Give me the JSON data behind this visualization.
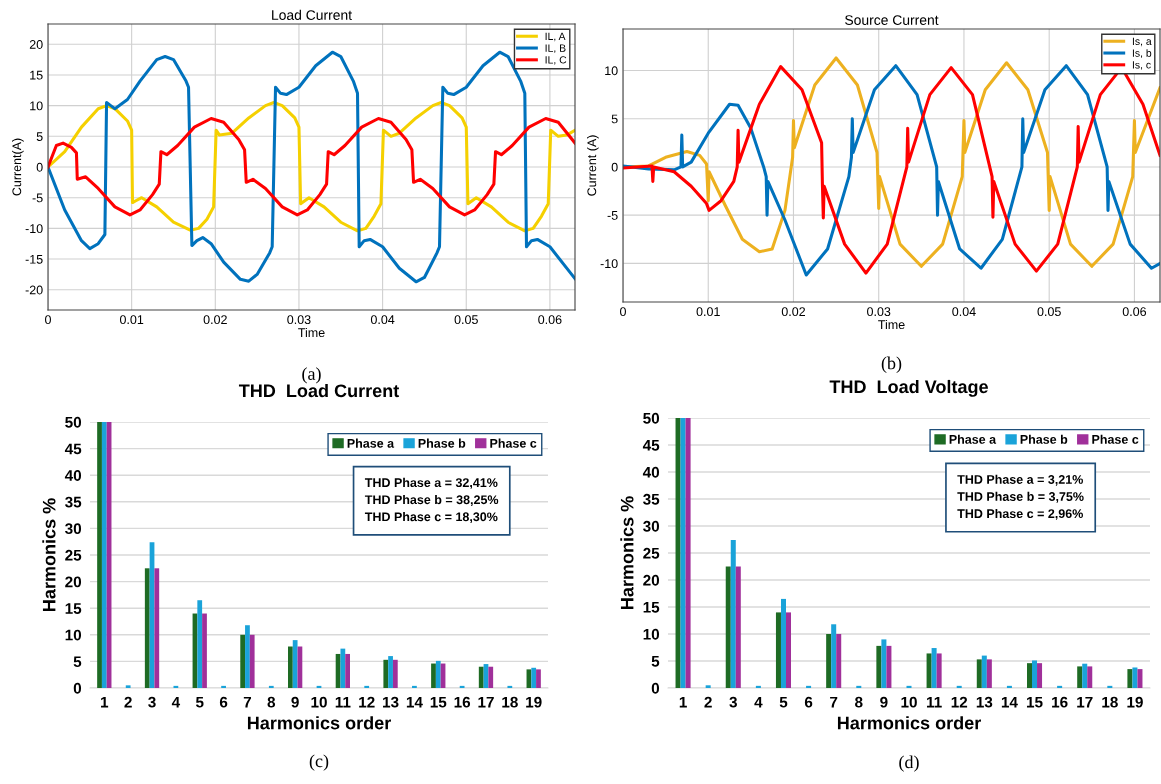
{
  "chart_data": [
    {
      "type": "line",
      "title": "Load Current",
      "xlabel": "Time",
      "ylabel": "Current(A)",
      "xlim": [
        0,
        0.063
      ],
      "ylim": [
        -23.3,
        23.3
      ],
      "xticks": [
        0,
        0.01,
        0.02,
        0.03,
        0.04,
        0.05,
        0.06
      ],
      "yticks": [
        -20,
        -15,
        -10,
        -5,
        0,
        5,
        10,
        15,
        20
      ],
      "grid": true,
      "legend": "top right",
      "marker": "none",
      "line_style": "solid",
      "annotations": [
        "(a)"
      ],
      "series": [
        {
          "name": "IL, A",
          "color": "#f5d000",
          "x": [
            0,
            0.002,
            0.004,
            0.006,
            0.007,
            0.008,
            0.0095,
            0.01,
            0.0101,
            0.0105,
            0.0112,
            0.013,
            0.015,
            0.017,
            0.018,
            0.019,
            0.0198,
            0.0201,
            0.0205,
            0.022,
            0.024,
            0.026,
            0.027,
            0.028,
            0.0295,
            0.03,
            0.0302,
            0.0312,
            0.033,
            0.035,
            0.037,
            0.038,
            0.039,
            0.0398,
            0.0401,
            0.041,
            0.042,
            0.044,
            0.046,
            0.047,
            0.048,
            0.0495,
            0.05,
            0.0502,
            0.0512,
            0.053,
            0.055,
            0.057,
            0.058,
            0.059,
            0.0598,
            0.0601,
            0.061,
            0.062,
            0.063
          ],
          "values": [
            0,
            2.5,
            6.5,
            9.5,
            10,
            9.5,
            7.5,
            6,
            -5.8,
            -5.5,
            -5,
            -6.5,
            -9,
            -10.3,
            -10,
            -8.5,
            -6.5,
            6,
            5.2,
            5.5,
            8,
            10,
            10.5,
            10,
            8,
            6.5,
            -6,
            -5,
            -6.5,
            -9,
            -10.4,
            -10,
            -8,
            -6,
            6,
            5,
            5.5,
            8,
            10,
            10.5,
            10,
            8,
            6.5,
            -6,
            -5,
            -6.5,
            -9,
            -10.4,
            -10,
            -8,
            -6,
            6,
            5,
            5.2,
            6
          ]
        },
        {
          "name": "IL, B",
          "color": "#0072bd",
          "x": [
            0,
            0.002,
            0.004,
            0.005,
            0.006,
            0.0068,
            0.007,
            0.0075,
            0.008,
            0.0095,
            0.011,
            0.013,
            0.014,
            0.015,
            0.0165,
            0.0168,
            0.0172,
            0.0178,
            0.0185,
            0.0195,
            0.021,
            0.023,
            0.024,
            0.025,
            0.0265,
            0.0268,
            0.0272,
            0.0278,
            0.0285,
            0.03,
            0.032,
            0.034,
            0.035,
            0.0365,
            0.037,
            0.0372,
            0.0378,
            0.0385,
            0.04,
            0.042,
            0.044,
            0.045,
            0.0465,
            0.0468,
            0.0472,
            0.0478,
            0.0485,
            0.05,
            0.052,
            0.054,
            0.055,
            0.0565,
            0.057,
            0.0572,
            0.0578,
            0.0585,
            0.06,
            0.063
          ],
          "values": [
            0,
            -7,
            -12,
            -13.3,
            -12.5,
            -11,
            10.5,
            10,
            9.5,
            11,
            14,
            17.5,
            18,
            17.5,
            14,
            13,
            -12.8,
            -12,
            -11.5,
            -12.5,
            -15.5,
            -18.3,
            -18.6,
            -17.5,
            -14,
            -13,
            13,
            12,
            11.8,
            13,
            16.5,
            18.7,
            18,
            14,
            12,
            -13,
            -12,
            -11.8,
            -13,
            -16.5,
            -18.7,
            -18,
            -14,
            -13,
            13,
            12,
            11.8,
            13,
            16.5,
            18.7,
            18,
            14,
            12,
            -13,
            -12,
            -11.8,
            -13,
            -18.2
          ]
        },
        {
          "name": "IL, C",
          "color": "#ff0000",
          "x": [
            0,
            0.001,
            0.0018,
            0.0028,
            0.0034,
            0.0035,
            0.0045,
            0.006,
            0.008,
            0.0098,
            0.011,
            0.0125,
            0.0133,
            0.0135,
            0.0142,
            0.0155,
            0.0175,
            0.0195,
            0.021,
            0.0228,
            0.0235,
            0.0237,
            0.0245,
            0.026,
            0.028,
            0.0298,
            0.031,
            0.0325,
            0.0333,
            0.0335,
            0.0342,
            0.0355,
            0.0375,
            0.0395,
            0.041,
            0.0428,
            0.0435,
            0.0437,
            0.0445,
            0.046,
            0.048,
            0.0498,
            0.051,
            0.0525,
            0.0533,
            0.0535,
            0.0542,
            0.0555,
            0.0575,
            0.0595,
            0.061,
            0.063
          ],
          "values": [
            0,
            3.5,
            3.9,
            3.2,
            2.3,
            -2,
            -1.6,
            -3.5,
            -6.5,
            -7.8,
            -7,
            -4.5,
            -2.8,
            2.5,
            2,
            3.5,
            6.5,
            7.9,
            7.3,
            4.5,
            2.8,
            -2.5,
            -2,
            -3.5,
            -6.5,
            -7.8,
            -7,
            -4.5,
            -2.8,
            2.5,
            2,
            3.5,
            6.5,
            7.9,
            7.3,
            4.5,
            2.8,
            -2.5,
            -2,
            -3.5,
            -6.5,
            -7.8,
            -7,
            -4.5,
            -2.8,
            2.5,
            2,
            3.5,
            6.5,
            7.9,
            7.3,
            3.9
          ]
        }
      ]
    },
    {
      "type": "line",
      "title": "Source Current",
      "xlabel": "Time",
      "ylabel": "Current (A)",
      "xlim": [
        0,
        0.063
      ],
      "ylim": [
        -14,
        14.3
      ],
      "xticks": [
        0,
        0.01,
        0.02,
        0.03,
        0.04,
        0.05,
        0.06
      ],
      "yticks": [
        -10,
        -5,
        0,
        5,
        10
      ],
      "grid": true,
      "legend": "top right",
      "marker": "none",
      "line_style": "solid",
      "annotations": [
        "(b)"
      ],
      "series": [
        {
          "name": "Is, a",
          "color": "#edb120",
          "x": [
            0,
            0.003,
            0.005,
            0.0075,
            0.009,
            0.0098,
            0.01,
            0.0101,
            0.012,
            0.014,
            0.016,
            0.0175,
            0.019,
            0.0199,
            0.02,
            0.0201,
            0.0225,
            0.025,
            0.0275,
            0.0298,
            0.03,
            0.0301,
            0.0325,
            0.035,
            0.0375,
            0.0398,
            0.04,
            0.0401,
            0.0425,
            0.045,
            0.0475,
            0.0498,
            0.05,
            0.0501,
            0.0525,
            0.055,
            0.0575,
            0.0598,
            0.06,
            0.0601,
            0.063
          ],
          "values": [
            0,
            0.1,
            1,
            1.6,
            1.2,
            0.3,
            -3.5,
            -0.5,
            -4,
            -7.5,
            -8.8,
            -8.5,
            -4.5,
            1,
            4.8,
            2,
            8.5,
            11.3,
            8.5,
            1.5,
            -4.3,
            -1,
            -8,
            -10.3,
            -8,
            -1,
            4.8,
            1.5,
            8,
            10.8,
            8,
            1.5,
            -4.5,
            -1,
            -8,
            -10.3,
            -8,
            -1,
            4.8,
            1.5,
            8.2
          ]
        },
        {
          "name": "Is, b",
          "color": "#0072bd",
          "x": [
            0,
            0.003,
            0.006,
            0.0068,
            0.0069,
            0.007,
            0.008,
            0.01,
            0.0125,
            0.0135,
            0.015,
            0.0165,
            0.0168,
            0.0169,
            0.017,
            0.019,
            0.0215,
            0.024,
            0.0265,
            0.0268,
            0.0269,
            0.027,
            0.0295,
            0.032,
            0.0345,
            0.0368,
            0.0369,
            0.037,
            0.0395,
            0.042,
            0.0445,
            0.0468,
            0.0469,
            0.047,
            0.0495,
            0.052,
            0.0545,
            0.0568,
            0.0569,
            0.057,
            0.0595,
            0.062,
            0.063
          ],
          "values": [
            0.1,
            -0.2,
            -0.3,
            0,
            3.3,
            0,
            0.5,
            3.5,
            6.5,
            6.4,
            4,
            0,
            -1,
            -5,
            -1.5,
            -5.5,
            -11.2,
            -8.5,
            -1,
            1,
            5,
            1.5,
            8,
            10.5,
            7.5,
            0,
            -5,
            -1.5,
            -8.5,
            -10.5,
            -7.5,
            0,
            5,
            1.5,
            8,
            10.5,
            7.5,
            0,
            -4.5,
            -1.5,
            -8,
            -10.5,
            -10
          ]
        },
        {
          "name": "Is, c",
          "color": "#ff0000",
          "x": [
            0,
            0.0034,
            0.0035,
            0.0036,
            0.006,
            0.008,
            0.0098,
            0.0101,
            0.0115,
            0.013,
            0.0134,
            0.0135,
            0.0136,
            0.016,
            0.0185,
            0.021,
            0.0233,
            0.0234,
            0.0235,
            0.0236,
            0.026,
            0.0285,
            0.031,
            0.0333,
            0.0334,
            0.0335,
            0.036,
            0.0385,
            0.041,
            0.0433,
            0.0434,
            0.0435,
            0.046,
            0.0485,
            0.051,
            0.0533,
            0.0534,
            0.0535,
            0.056,
            0.0585,
            0.061,
            0.063
          ],
          "values": [
            -0.1,
            0.1,
            -1.5,
            0,
            -0.5,
            -2,
            -3.8,
            -4.5,
            -3.5,
            -1.5,
            0,
            3.8,
            0.5,
            6.5,
            10.4,
            8,
            2.5,
            -2,
            -5.3,
            -2,
            -8,
            -11,
            -8,
            0,
            4,
            0.5,
            7.5,
            10.3,
            7.5,
            -1,
            -5.2,
            -1.5,
            -8,
            -10.8,
            -8,
            0,
            4.2,
            0.5,
            7.5,
            10.3,
            6.5,
            1.2
          ]
        }
      ]
    },
    {
      "type": "bar",
      "title": "THD  Load Current",
      "xlabel": "Harmonics order",
      "ylabel": "Harmonics %",
      "categories": [
        "1",
        "2",
        "3",
        "4",
        "5",
        "6",
        "7",
        "8",
        "9",
        "10",
        "11",
        "12",
        "13",
        "14",
        "15",
        "16",
        "17",
        "18",
        "19"
      ],
      "ylim": [
        0,
        50
      ],
      "yticks": [
        0,
        5,
        10,
        15,
        20,
        25,
        30,
        35,
        40,
        45,
        50
      ],
      "grid": "y",
      "legend": "top right",
      "annotations": [
        "THD Phase a = 32,41%",
        "THD Phase b = 38,25%",
        "THD Phase c = 18,30%",
        "(c)"
      ],
      "series": [
        {
          "name": "Phase a",
          "color": "#1e6b24",
          "values": [
            50,
            0,
            22.5,
            0,
            14,
            0,
            10,
            0,
            7.8,
            0,
            6.4,
            0,
            5.3,
            0,
            4.6,
            0,
            4,
            0,
            3.5
          ]
        },
        {
          "name": "Phase b",
          "color": "#1aa3d9",
          "values": [
            50,
            0.5,
            27.4,
            0.4,
            16.5,
            0.4,
            11.8,
            0.4,
            9,
            0.4,
            7.4,
            0.4,
            6,
            0.4,
            5.1,
            0.4,
            4.5,
            0.4,
            3.8
          ]
        },
        {
          "name": "Phase c",
          "color": "#a0309a",
          "values": [
            50,
            0,
            22.5,
            0,
            14,
            0,
            10,
            0,
            7.8,
            0,
            6.4,
            0,
            5.3,
            0,
            4.6,
            0,
            4,
            0,
            3.5
          ]
        }
      ]
    },
    {
      "type": "bar",
      "title": "THD  Load Voltage",
      "xlabel": "Harmonics order",
      "ylabel": "Harmonics %",
      "categories": [
        "1",
        "2",
        "3",
        "4",
        "5",
        "6",
        "7",
        "8",
        "9",
        "10",
        "11",
        "12",
        "13",
        "14",
        "15",
        "16",
        "17",
        "18",
        "19"
      ],
      "ylim": [
        0,
        50
      ],
      "yticks": [
        0,
        5,
        10,
        15,
        20,
        25,
        30,
        35,
        40,
        45,
        50
      ],
      "grid": "y",
      "legend": "top right",
      "annotations": [
        "THD Phase a = 3,21%",
        "THD Phase b = 3,75%",
        "THD Phase c = 2,96%",
        "(d)"
      ],
      "series": [
        {
          "name": "Phase a",
          "color": "#1e6b24",
          "values": [
            50,
            0,
            22.5,
            0,
            14,
            0,
            10,
            0,
            7.8,
            0,
            6.4,
            0,
            5.3,
            0,
            4.6,
            0,
            4,
            0,
            3.5
          ]
        },
        {
          "name": "Phase b",
          "color": "#1aa3d9",
          "values": [
            50,
            0.5,
            27.4,
            0.4,
            16.5,
            0.4,
            11.8,
            0.4,
            9,
            0.4,
            7.4,
            0.4,
            6,
            0.4,
            5.1,
            0.4,
            4.5,
            0.4,
            3.8
          ]
        },
        {
          "name": "Phase c",
          "color": "#a0309a",
          "values": [
            50,
            0,
            22.5,
            0,
            14,
            0,
            10,
            0,
            7.8,
            0,
            6.4,
            0,
            5.3,
            0,
            4.6,
            0,
            4,
            0,
            3.5
          ]
        }
      ]
    }
  ]
}
